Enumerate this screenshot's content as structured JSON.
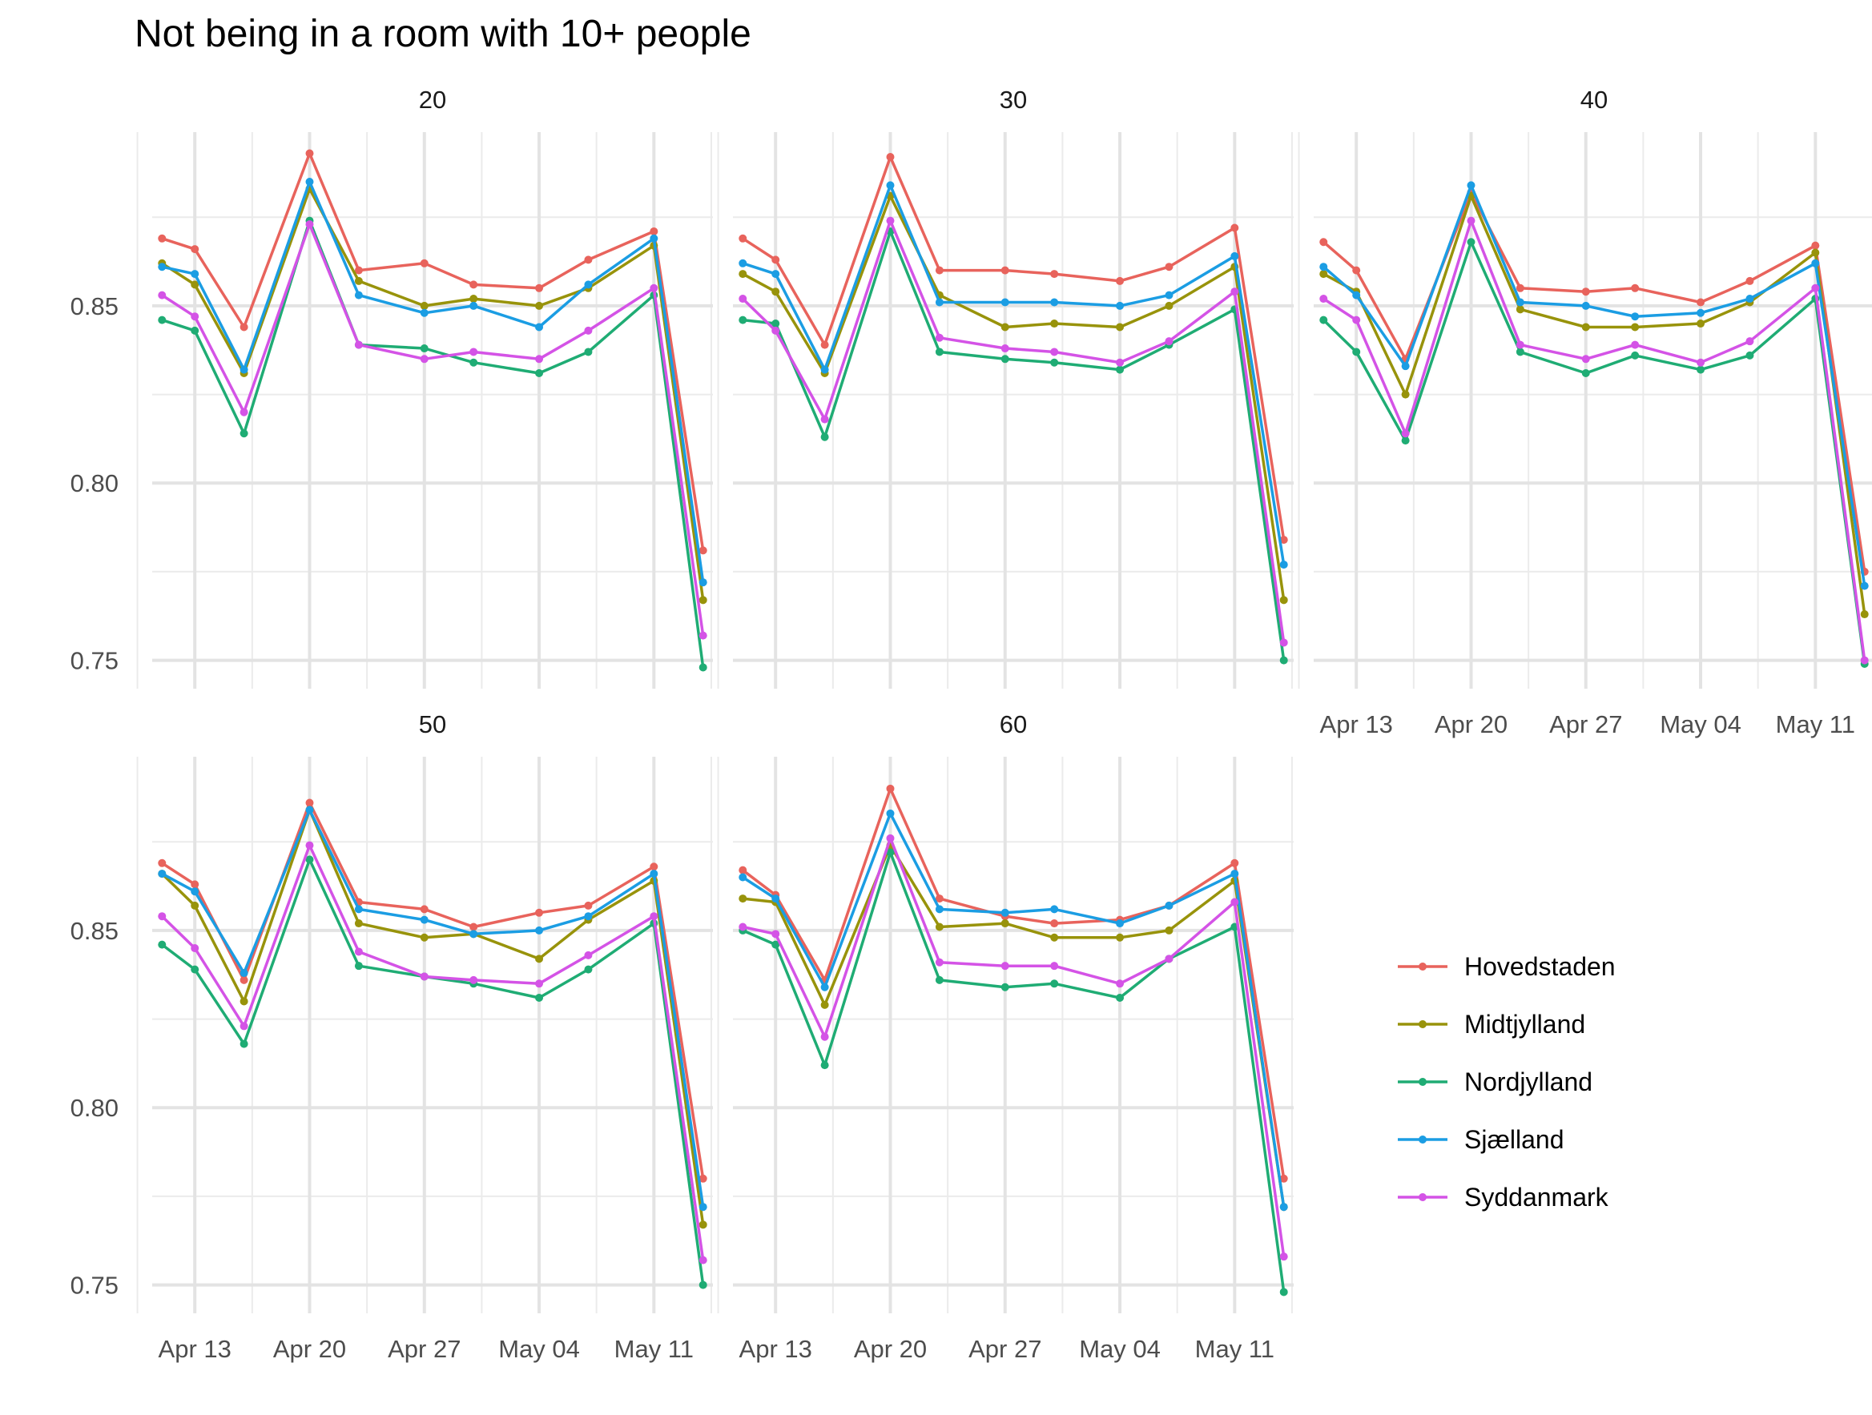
{
  "title": "Not being in a room with 10+ people",
  "x_tick_labels": [
    "Apr 13",
    "Apr 20",
    "Apr 27",
    "May 04",
    "May 11"
  ],
  "y_tick_labels": [
    "0.75",
    "0.80",
    "0.85"
  ],
  "legend": [
    {
      "name": "Hovedstaden",
      "color": "#E8635C"
    },
    {
      "name": "Midtjylland",
      "color": "#98930B"
    },
    {
      "name": "Nordjylland",
      "color": "#1FAC74"
    },
    {
      "name": "Sjælland",
      "color": "#1B9DE3"
    },
    {
      "name": "Syddanmark",
      "color": "#D453E6"
    }
  ],
  "chart_data": {
    "type": "line",
    "facet_by": "age",
    "x": [
      "2020-04-11",
      "2020-04-13",
      "2020-04-16",
      "2020-04-20",
      "2020-04-23",
      "2020-04-27",
      "2020-04-30",
      "2020-05-04",
      "2020-05-07",
      "2020-05-11",
      "2020-05-14"
    ],
    "xlabel": "",
    "ylabel": "",
    "ylim": [
      0.742,
      0.899
    ],
    "grid": true,
    "legend_position": "right",
    "panels": [
      {
        "facet": "20",
        "series": [
          {
            "name": "Hovedstaden",
            "values": [
              0.869,
              0.866,
              0.844,
              0.893,
              0.86,
              0.862,
              0.856,
              0.855,
              0.863,
              0.871,
              0.781
            ]
          },
          {
            "name": "Midtjylland",
            "values": [
              0.862,
              0.856,
              0.831,
              0.883,
              0.857,
              0.85,
              0.852,
              0.85,
              0.855,
              0.867,
              0.767
            ]
          },
          {
            "name": "Nordjylland",
            "values": [
              0.846,
              0.843,
              0.814,
              0.874,
              0.839,
              0.838,
              0.834,
              0.831,
              0.837,
              0.853,
              0.748
            ]
          },
          {
            "name": "Sjælland",
            "values": [
              0.861,
              0.859,
              0.832,
              0.885,
              0.853,
              0.848,
              0.85,
              0.844,
              0.856,
              0.869,
              0.772
            ]
          },
          {
            "name": "Syddanmark",
            "values": [
              0.853,
              0.847,
              0.82,
              0.873,
              0.839,
              0.835,
              0.837,
              0.835,
              0.843,
              0.855,
              0.757
            ]
          }
        ]
      },
      {
        "facet": "30",
        "series": [
          {
            "name": "Hovedstaden",
            "values": [
              0.869,
              0.863,
              0.839,
              0.892,
              0.86,
              0.86,
              0.859,
              0.857,
              0.861,
              0.872,
              0.784
            ]
          },
          {
            "name": "Midtjylland",
            "values": [
              0.859,
              0.854,
              0.831,
              0.881,
              0.853,
              0.844,
              0.845,
              0.844,
              0.85,
              0.861,
              0.767
            ]
          },
          {
            "name": "Nordjylland",
            "values": [
              0.846,
              0.845,
              0.813,
              0.871,
              0.837,
              0.835,
              0.834,
              0.832,
              0.839,
              0.849,
              0.75
            ]
          },
          {
            "name": "Sjælland",
            "values": [
              0.862,
              0.859,
              0.832,
              0.884,
              0.851,
              0.851,
              0.851,
              0.85,
              0.853,
              0.864,
              0.777
            ]
          },
          {
            "name": "Syddanmark",
            "values": [
              0.852,
              0.843,
              0.818,
              0.874,
              0.841,
              0.838,
              0.837,
              0.834,
              0.84,
              0.854,
              0.755
            ]
          }
        ]
      },
      {
        "facet": "40",
        "series": [
          {
            "name": "Hovedstaden",
            "values": [
              0.868,
              0.86,
              0.835,
              0.882,
              0.855,
              0.854,
              0.855,
              0.851,
              0.857,
              0.867,
              0.775
            ]
          },
          {
            "name": "Midtjylland",
            "values": [
              0.859,
              0.854,
              0.825,
              0.881,
              0.849,
              0.844,
              0.844,
              0.845,
              0.851,
              0.865,
              0.763
            ]
          },
          {
            "name": "Nordjylland",
            "values": [
              0.846,
              0.837,
              0.812,
              0.868,
              0.837,
              0.831,
              0.836,
              0.832,
              0.836,
              0.852,
              0.749
            ]
          },
          {
            "name": "Sjælland",
            "values": [
              0.861,
              0.853,
              0.833,
              0.884,
              0.851,
              0.85,
              0.847,
              0.848,
              0.852,
              0.862,
              0.771
            ]
          },
          {
            "name": "Syddanmark",
            "values": [
              0.852,
              0.846,
              0.814,
              0.874,
              0.839,
              0.835,
              0.839,
              0.834,
              0.84,
              0.855,
              0.75
            ]
          }
        ]
      },
      {
        "facet": "50",
        "series": [
          {
            "name": "Hovedstaden",
            "values": [
              0.869,
              0.863,
              0.836,
              0.886,
              0.858,
              0.856,
              0.851,
              0.855,
              0.857,
              0.868,
              0.78
            ]
          },
          {
            "name": "Midtjylland",
            "values": [
              0.866,
              0.857,
              0.83,
              0.884,
              0.852,
              0.848,
              0.849,
              0.842,
              0.853,
              0.864,
              0.767
            ]
          },
          {
            "name": "Nordjylland",
            "values": [
              0.846,
              0.839,
              0.818,
              0.87,
              0.84,
              0.837,
              0.835,
              0.831,
              0.839,
              0.852,
              0.75
            ]
          },
          {
            "name": "Sjælland",
            "values": [
              0.866,
              0.861,
              0.838,
              0.884,
              0.856,
              0.853,
              0.849,
              0.85,
              0.854,
              0.866,
              0.772
            ]
          },
          {
            "name": "Syddanmark",
            "values": [
              0.854,
              0.845,
              0.823,
              0.874,
              0.844,
              0.837,
              0.836,
              0.835,
              0.843,
              0.854,
              0.757
            ]
          }
        ]
      },
      {
        "facet": "60",
        "series": [
          {
            "name": "Hovedstaden",
            "values": [
              0.867,
              0.86,
              0.836,
              0.89,
              0.859,
              0.854,
              0.852,
              0.853,
              0.857,
              0.869,
              0.78
            ]
          },
          {
            "name": "Midtjylland",
            "values": [
              0.859,
              0.858,
              0.829,
              0.874,
              0.851,
              0.852,
              0.848,
              0.848,
              0.85,
              0.864,
              0.772
            ]
          },
          {
            "name": "Nordjylland",
            "values": [
              0.85,
              0.846,
              0.812,
              0.872,
              0.836,
              0.834,
              0.835,
              0.831,
              0.842,
              0.851,
              0.748
            ]
          },
          {
            "name": "Sjælland",
            "values": [
              0.865,
              0.859,
              0.834,
              0.883,
              0.856,
              0.855,
              0.856,
              0.852,
              0.857,
              0.866,
              0.772
            ]
          },
          {
            "name": "Syddanmark",
            "values": [
              0.851,
              0.849,
              0.82,
              0.876,
              0.841,
              0.84,
              0.84,
              0.835,
              0.842,
              0.858,
              0.758
            ]
          }
        ]
      }
    ]
  }
}
